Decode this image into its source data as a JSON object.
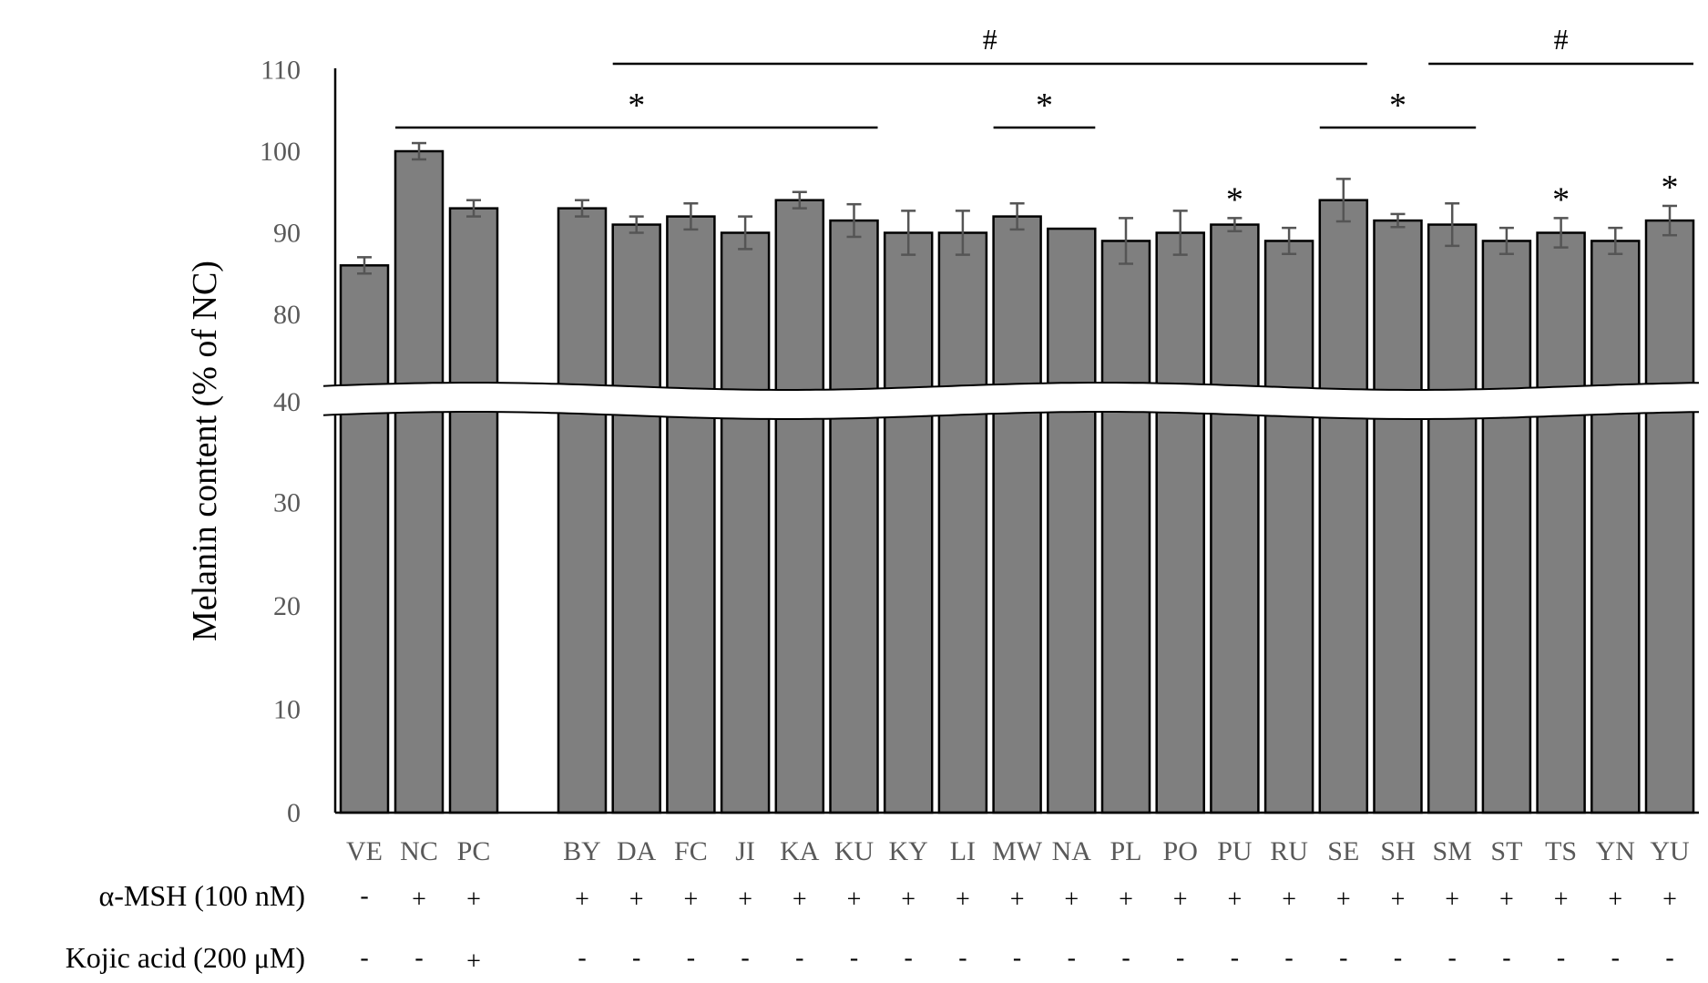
{
  "chart_data": {
    "type": "bar",
    "title": "",
    "xlabel": "",
    "ylabel": "Melanin content (% of NC)",
    "axis_break": [
      40,
      80
    ],
    "ylim": [
      0,
      110
    ],
    "yticks": [
      "0",
      "10",
      "20",
      "30",
      "40",
      "80",
      "90",
      "100",
      "110"
    ],
    "categories": [
      "VE",
      "NC",
      "PC",
      "BY",
      "DA",
      "FC",
      "JI",
      "KA",
      "KU",
      "KY",
      "LI",
      "MW",
      "NA",
      "PL",
      "PO",
      "PU",
      "RU",
      "SE",
      "SH",
      "SM",
      "ST",
      "TS",
      "YN",
      "YU"
    ],
    "series": [
      {
        "values": [
          86,
          100,
          93,
          93,
          91,
          92,
          90,
          94,
          91.5,
          90,
          90,
          92,
          90.5,
          89,
          90,
          91,
          89,
          94,
          91.5,
          91,
          89,
          90,
          89,
          91.5
        ],
        "errors": [
          1.0,
          1.0,
          1.0,
          1.0,
          1.0,
          1.6,
          2.0,
          1.0,
          2.0,
          2.7,
          2.7,
          1.6,
          0.0,
          2.8,
          2.7,
          0.8,
          1.6,
          2.6,
          0.8,
          2.6,
          1.6,
          1.8,
          1.6,
          1.8
        ]
      }
    ],
    "bar_color": "#7f7f7f",
    "treatments": [
      {
        "label": "α-MSH (100 nM)",
        "values": [
          "-",
          "+",
          "+",
          "+",
          "+",
          "+",
          "+",
          "+",
          "+",
          "+",
          "+",
          "+",
          "+",
          "+",
          "+",
          "+",
          "+",
          "+",
          "+",
          "+",
          "+",
          "+",
          "+",
          "+"
        ]
      },
      {
        "label": "Kojic acid (200 μM)",
        "values": [
          "-",
          "-",
          "+",
          "-",
          "-",
          "-",
          "-",
          "-",
          "-",
          "-",
          "-",
          "-",
          "-",
          "-",
          "-",
          "-",
          "-",
          "-",
          "-",
          "-",
          "-",
          "-",
          "-",
          "-"
        ]
      }
    ],
    "significance": {
      "brackets": [
        {
          "symbol": "#",
          "from": "DA",
          "to": "SE"
        },
        {
          "symbol": "#",
          "from": "SM",
          "to": "YU"
        },
        {
          "symbol": "*",
          "from": "NC",
          "to": "KU"
        },
        {
          "symbol": "*",
          "from": "MW",
          "to": "NA"
        },
        {
          "symbol": "*",
          "from": "SE",
          "to": "SM"
        }
      ],
      "bar_marks": [
        {
          "symbol": "*",
          "category": "PU"
        },
        {
          "symbol": "*",
          "category": "TS"
        },
        {
          "symbol": "*",
          "category": "YU"
        }
      ]
    }
  }
}
